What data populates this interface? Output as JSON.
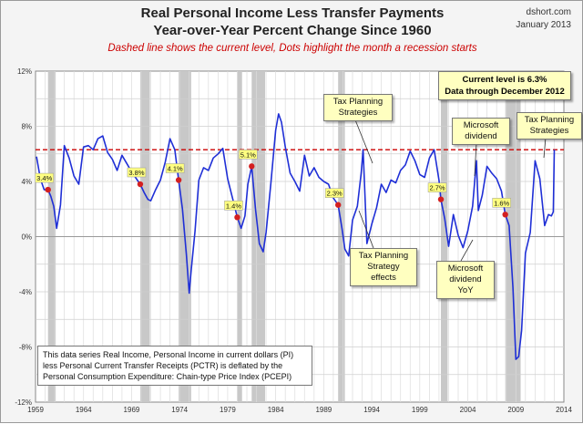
{
  "header": {
    "title_line1": "Real Personal Income Less Transfer Payments",
    "title_line2": "Year-over-Year Percent Change Since 1960",
    "subtitle": "Dashed line shows the current level, Dots highlight the month a recession starts",
    "source_line1": "dshort.com",
    "source_line2": "January 2013"
  },
  "annotations": {
    "current_level": "Current level is 6.3%",
    "data_through": "Data through December 2012",
    "tax1": [
      "Tax Planning",
      "Strategies"
    ],
    "tax2": [
      "Tax Planning",
      "Strategy",
      "effects"
    ],
    "ms_div": [
      "Microsoft",
      "dividend"
    ],
    "ms_yoy": [
      "Microsoft",
      "dividend",
      "YoY"
    ],
    "tax3": [
      "Tax Planning",
      "Strategies"
    ],
    "info_text": "This data series  Real Income, Personal Income in current dollars  (PI) less Personal Current Transfer Receipts (PCTR) is deflated by the Personal Consumption Expenditure: Chain-type Price Index (PCEPI)"
  },
  "colors": {
    "line": "#1f2fd6",
    "dashed": "#cc0000",
    "recession": "#c8c8c8",
    "dot": "#d42020"
  },
  "chart_data": {
    "type": "line",
    "title": "Real Personal Income Less Transfer Payments Year-over-Year Percent Change Since 1960",
    "xlim": [
      1959,
      2014
    ],
    "ylim": [
      -12,
      12
    ],
    "x_ticks": [
      "1959",
      "1964",
      "1969",
      "1974",
      "1979",
      "1984",
      "1989",
      "1994",
      "1999",
      "2004",
      "2009",
      "2014"
    ],
    "y_ticks": [
      "12%",
      "8%",
      "4%",
      "0%",
      "-4%",
      "-8%",
      "-12%"
    ],
    "current_level": 6.3,
    "recessions": [
      [
        1960.3,
        1961.1
      ],
      [
        1969.9,
        1970.9
      ],
      [
        1973.9,
        1975.2
      ],
      [
        1980.0,
        1980.5
      ],
      [
        1981.5,
        1982.9
      ],
      [
        1990.5,
        1991.2
      ],
      [
        2001.2,
        2001.9
      ],
      [
        2007.9,
        2009.5
      ]
    ],
    "recession_starts": [
      {
        "x": 1960.3,
        "y": 3.4,
        "label": "3.4%"
      },
      {
        "x": 1969.9,
        "y": 3.8,
        "label": "3.8%"
      },
      {
        "x": 1973.9,
        "y": 4.1,
        "label": "4.1%"
      },
      {
        "x": 1980.0,
        "y": 1.4,
        "label": "1.4%"
      },
      {
        "x": 1981.5,
        "y": 5.1,
        "label": "5.1%"
      },
      {
        "x": 1990.5,
        "y": 2.3,
        "label": "2.3%"
      },
      {
        "x": 2001.2,
        "y": 2.7,
        "label": "2.7%"
      },
      {
        "x": 2007.9,
        "y": 1.6,
        "label": "1.6%"
      }
    ],
    "series": [
      {
        "x": [
          1959.1,
          1959.5,
          1959.9,
          1960.3,
          1960.6,
          1960.9,
          1961.2,
          1961.6,
          1962.0,
          1962.5,
          1963.0,
          1963.5,
          1964.0,
          1964.5,
          1965.0,
          1965.5,
          1966.0,
          1966.5,
          1967.0,
          1967.5,
          1968.0,
          1968.5,
          1969.0,
          1969.5,
          1969.9,
          1970.3,
          1970.7,
          1971.0,
          1971.5,
          1972.0,
          1972.5,
          1973.0,
          1973.5,
          1973.9,
          1974.3,
          1974.7,
          1975.0,
          1975.2,
          1975.6,
          1976.0,
          1976.5,
          1977.0,
          1977.5,
          1978.0,
          1978.5,
          1979.0,
          1979.5,
          1980.0,
          1980.4,
          1980.8,
          1981.1,
          1981.5,
          1981.9,
          1982.3,
          1982.7,
          1983.0,
          1983.5,
          1984.0,
          1984.3,
          1984.6,
          1985.0,
          1985.5,
          1986.0,
          1986.5,
          1987.0,
          1987.5,
          1988.0,
          1988.5,
          1989.0,
          1989.5,
          1990.0,
          1990.5,
          1990.9,
          1991.2,
          1991.6,
          1992.0,
          1992.5,
          1992.9,
          1993.1,
          1993.5,
          1994.0,
          1994.5,
          1995.0,
          1995.5,
          1996.0,
          1996.5,
          1997.0,
          1997.5,
          1998.0,
          1998.5,
          1999.0,
          1999.5,
          2000.0,
          2000.5,
          2001.0,
          2001.2,
          2001.6,
          2002.0,
          2002.5,
          2003.0,
          2003.5,
          2004.0,
          2004.5,
          2004.9,
          2005.1,
          2005.5,
          2006.0,
          2006.5,
          2007.0,
          2007.5,
          2007.9,
          2008.3,
          2008.7,
          2009.0,
          2009.3,
          2009.6,
          2010.0,
          2010.5,
          2011.0,
          2011.5,
          2012.0,
          2012.4,
          2012.7,
          2012.9,
          2013.0
        ],
        "values": [
          5.8,
          4.2,
          3.4,
          3.4,
          2.9,
          2.2,
          0.6,
          2.3,
          6.6,
          5.7,
          4.4,
          3.8,
          6.5,
          6.6,
          6.3,
          7.1,
          7.3,
          6.1,
          5.6,
          4.8,
          5.9,
          5.3,
          4.7,
          4.2,
          3.8,
          3.2,
          2.7,
          2.6,
          3.4,
          4.1,
          5.4,
          7.1,
          6.3,
          4.1,
          2.0,
          -1.3,
          -4.1,
          -2.5,
          0.4,
          4.1,
          5.0,
          4.8,
          5.7,
          6.0,
          6.4,
          4.2,
          2.8,
          1.4,
          0.6,
          1.5,
          3.8,
          5.1,
          2.0,
          -0.5,
          -1.1,
          0.3,
          3.9,
          7.7,
          8.9,
          8.3,
          6.5,
          4.6,
          4.0,
          3.3,
          5.9,
          4.4,
          5.0,
          4.3,
          4.0,
          3.8,
          2.8,
          2.3,
          0.6,
          -0.9,
          -1.4,
          1.2,
          2.2,
          4.6,
          6.3,
          -0.5,
          0.9,
          2.1,
          3.8,
          3.2,
          4.1,
          3.9,
          4.8,
          5.2,
          6.2,
          5.5,
          4.5,
          4.3,
          5.7,
          6.3,
          4.1,
          2.7,
          1.3,
          -0.7,
          1.6,
          0.1,
          -0.8,
          0.4,
          2.2,
          5.5,
          1.9,
          3.0,
          5.1,
          4.6,
          4.2,
          3.3,
          1.6,
          0.8,
          -3.7,
          -8.9,
          -8.7,
          -6.8,
          -1.2,
          0.3,
          5.5,
          4.2,
          0.8,
          1.6,
          1.5,
          1.8,
          6.3
        ]
      }
    ]
  }
}
